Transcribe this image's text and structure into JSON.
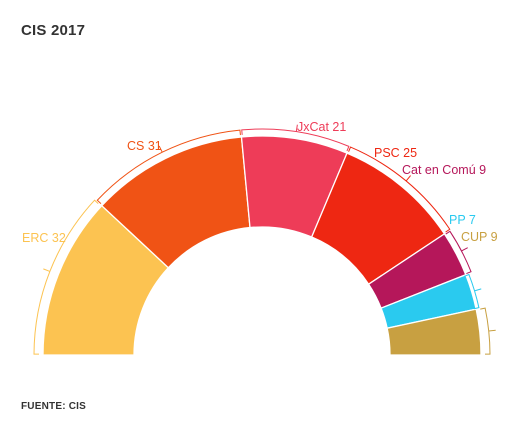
{
  "title": "CIS 2017",
  "source": "FUENTE: CIS",
  "chart_data": {
    "type": "pie",
    "shape": "semicircle (parliament seats)",
    "title": "CIS 2017",
    "legend": "none (direct labels)",
    "series": [
      {
        "name": "ERC",
        "label": "ERC 32",
        "value": 32,
        "color": "#FCC351"
      },
      {
        "name": "CS",
        "label": "CS 31",
        "value": 31,
        "color": "#F05315"
      },
      {
        "name": "JxCat",
        "label": "JxCat 21",
        "value": 21,
        "color": "#EE3C58"
      },
      {
        "name": "PSC",
        "label": "PSC 25",
        "value": 25,
        "color": "#EE2712"
      },
      {
        "name": "Cat en Comú",
        "label": "Cat en Comú 9",
        "value": 9,
        "color": "#B5175A"
      },
      {
        "name": "PP",
        "label": "PP 7",
        "value": 7,
        "color": "#2ACAEF"
      },
      {
        "name": "CUP",
        "label": "CUP 9",
        "value": 9,
        "color": "#C8A041"
      }
    ]
  }
}
